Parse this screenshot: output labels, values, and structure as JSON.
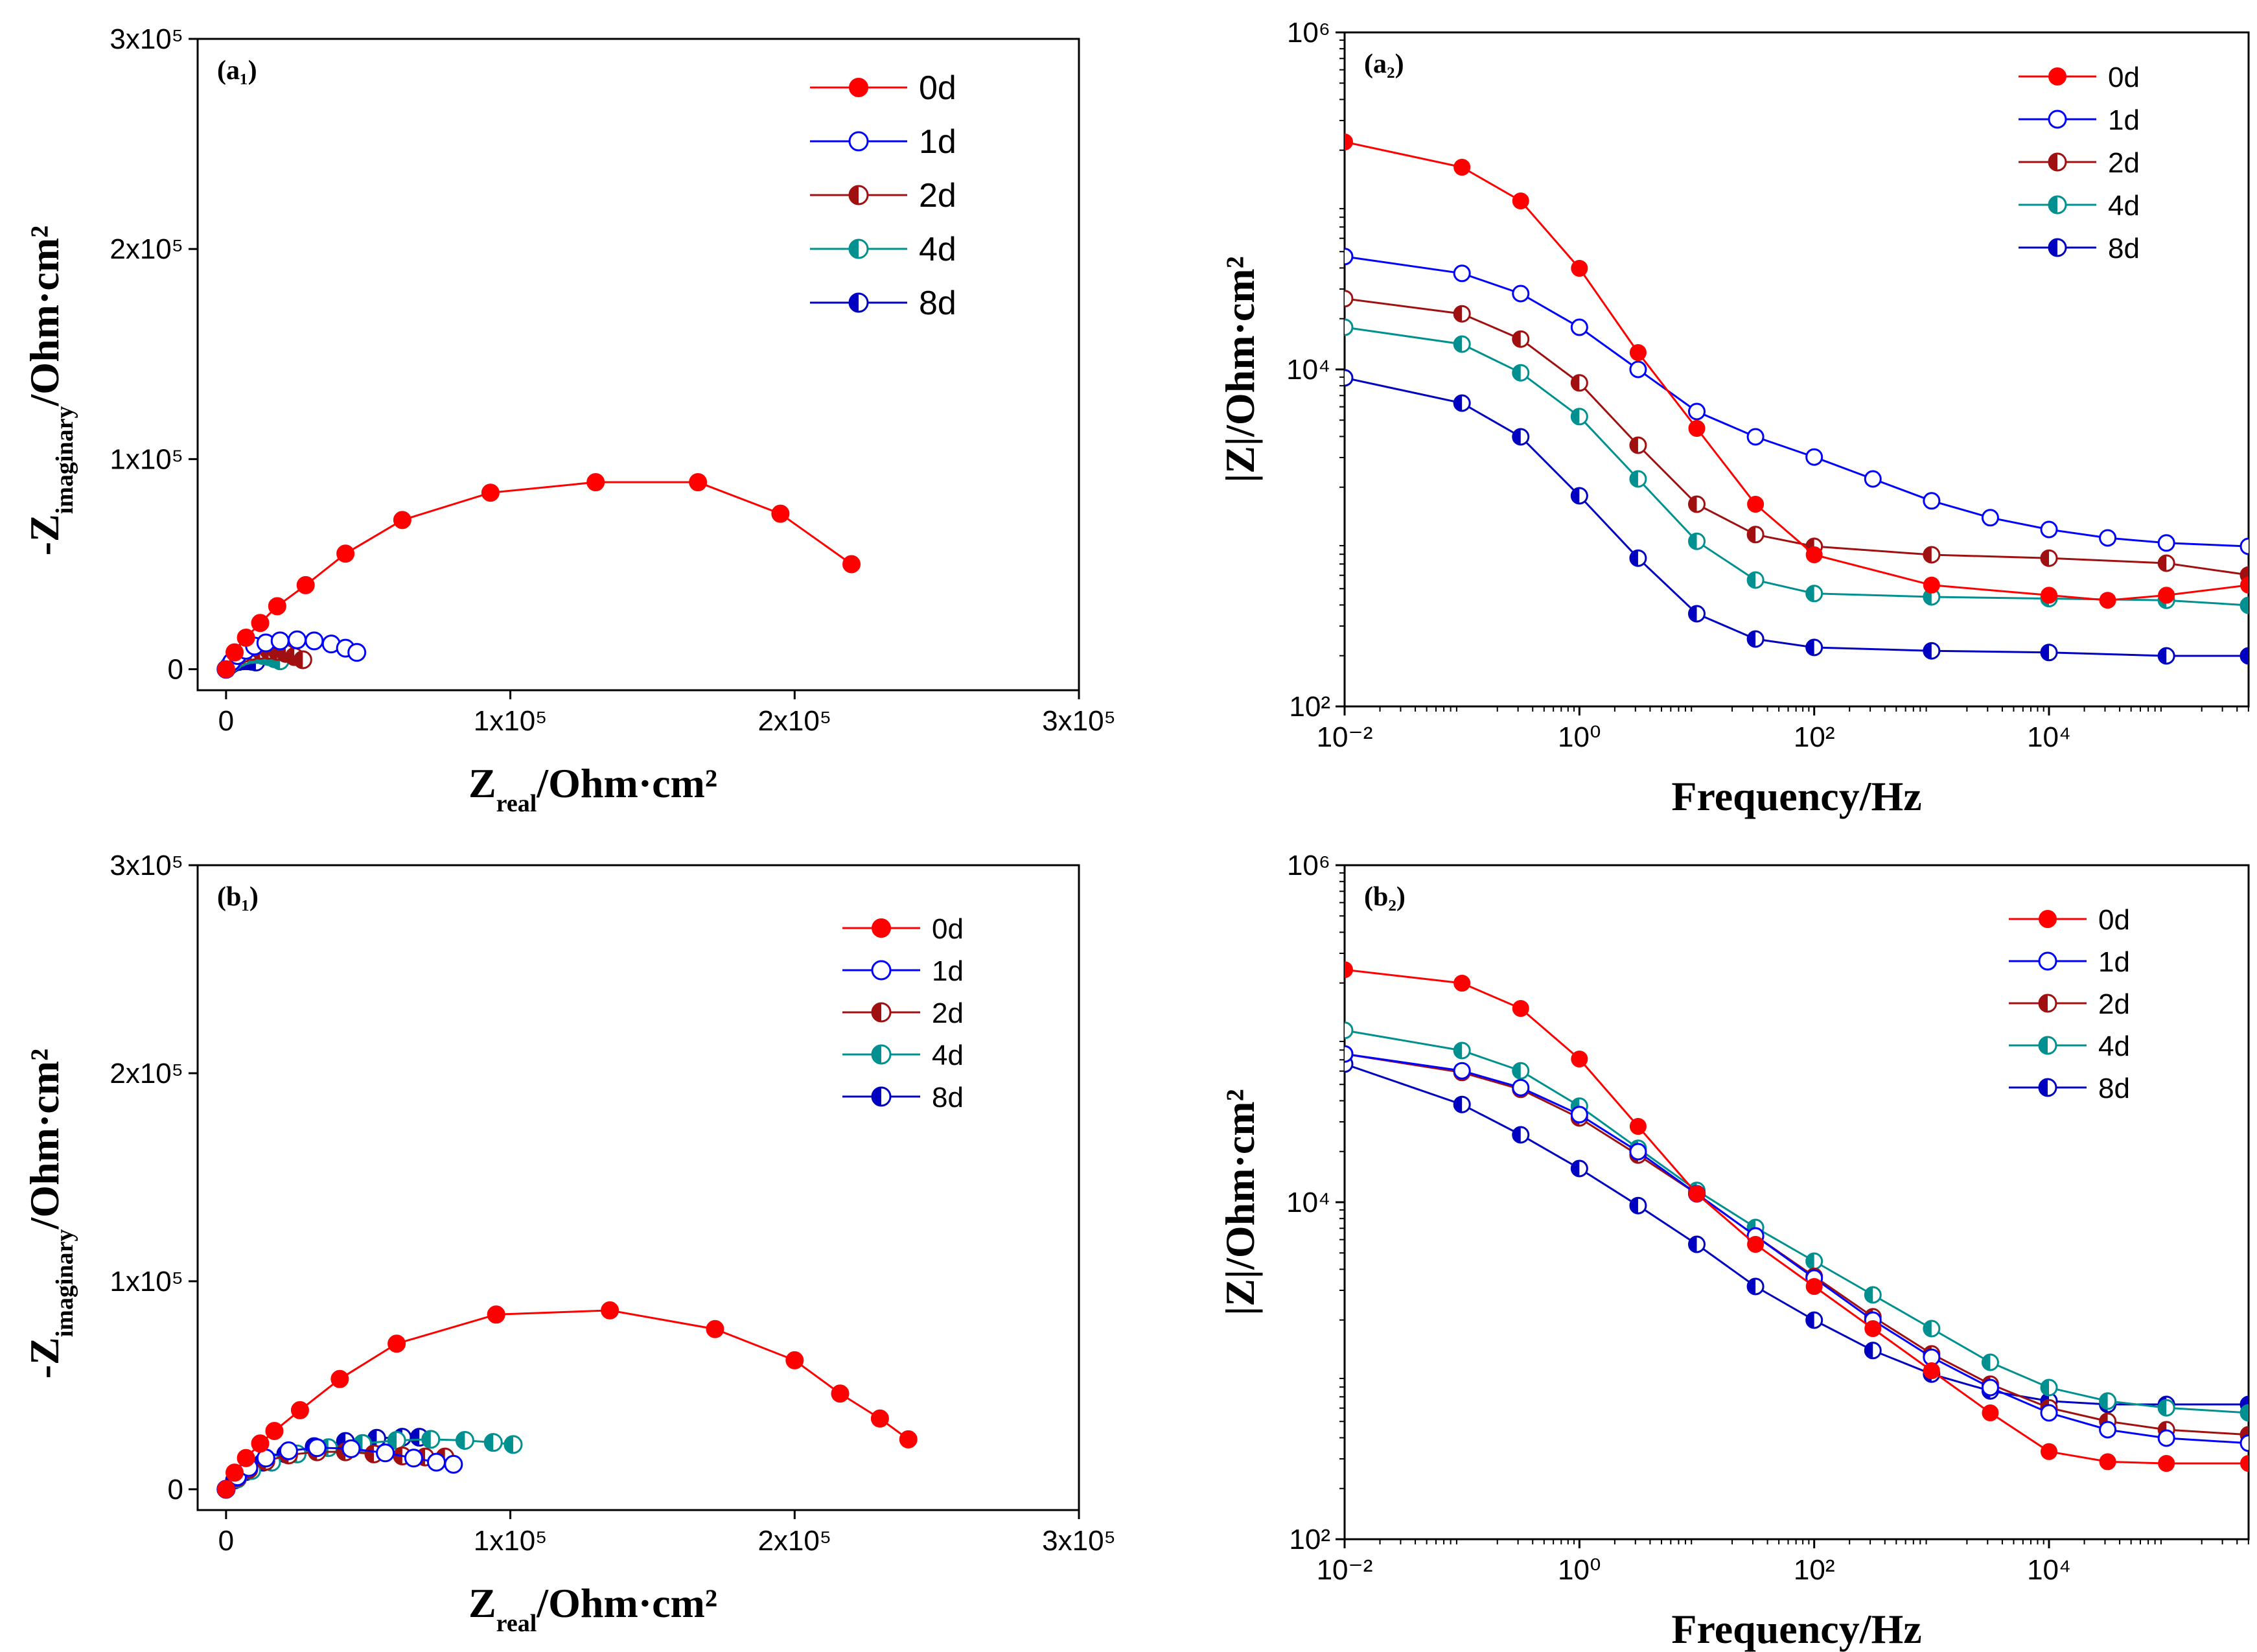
{
  "chart_data": [
    {
      "id": "a1",
      "type": "scatter",
      "panel_label": "(a₁)",
      "xlabel": "Z",
      "xlabel_sub": "real",
      "xlabel_rest": "/Ohm·cm²",
      "ylabel": "-Z",
      "ylabel_sub": "imaginary",
      "ylabel_rest": "/Ohm·cm²",
      "xlim": [
        -10000,
        300000
      ],
      "ylim": [
        -10000,
        300000
      ],
      "xticks": [
        0,
        100000,
        200000,
        300000
      ],
      "xtick_labels": [
        "0",
        "1x10⁵",
        "2x10⁵",
        "3x10⁵"
      ],
      "yticks": [
        0,
        100000,
        200000,
        300000
      ],
      "ytick_labels": [
        "0",
        "1x10⁵",
        "2x10⁵",
        "3x10⁵"
      ],
      "legend_position": "top-right",
      "series": [
        {
          "name": "0d",
          "color": "#ff0000",
          "marker": "filled",
          "x": [
            0,
            3000,
            7000,
            12000,
            18000,
            28000,
            42000,
            62000,
            93000,
            130000,
            166000,
            195000,
            220000
          ],
          "y": [
            0,
            8000,
            15000,
            22000,
            30000,
            40000,
            55000,
            71000,
            84000,
            89000,
            89000,
            74000,
            50000
          ]
        },
        {
          "name": "1d",
          "color": "#0000ff",
          "marker": "open",
          "x": [
            0,
            2000,
            4000,
            7000,
            10000,
            14000,
            19000,
            25000,
            31000,
            37000,
            42000,
            46000
          ],
          "y": [
            0,
            3500,
            6500,
            9000,
            11000,
            12500,
            13500,
            14000,
            13500,
            12000,
            10000,
            8000
          ]
        },
        {
          "name": "2d",
          "color": "#a01010",
          "marker": "half",
          "x": [
            0,
            2000,
            4000,
            6000,
            9000,
            12000,
            15000,
            18000,
            21000,
            24000,
            27000
          ],
          "y": [
            0,
            3500,
            6000,
            7500,
            8500,
            9000,
            9000,
            8500,
            7500,
            6000,
            4500
          ]
        },
        {
          "name": "4d",
          "color": "#009090",
          "marker": "half",
          "x": [
            0,
            1500,
            3000,
            5000,
            7000,
            9000,
            11000,
            13000,
            15000,
            17000,
            19000
          ],
          "y": [
            0,
            2500,
            4000,
            5500,
            6500,
            7000,
            7000,
            6500,
            6000,
            5000,
            4000
          ]
        },
        {
          "name": "8d",
          "color": "#0000c0",
          "marker": "half",
          "x": [
            0,
            1000,
            2000,
            3000,
            4500,
            6000,
            7500,
            9000,
            10500
          ],
          "y": [
            0,
            1500,
            2500,
            3200,
            3700,
            4000,
            4000,
            3800,
            3400
          ]
        }
      ]
    },
    {
      "id": "a2",
      "type": "line",
      "log_x": true,
      "log_y": true,
      "panel_label": "(a₂)",
      "xlabel": "Frequency/Hz",
      "ylabel": "|Z|/Ohm·cm²",
      "xlim_log10": [
        -2,
        5.7
      ],
      "ylim_log10": [
        2,
        6
      ],
      "xticks_log10": [
        -2,
        0,
        2,
        4
      ],
      "xtick_labels": [
        "10⁻²",
        "10⁰",
        "10²",
        "10⁴"
      ],
      "yticks_log10": [
        2,
        4,
        6
      ],
      "ytick_labels": [
        "10²",
        "10⁴",
        "10⁶"
      ],
      "legend_position": "top-right",
      "series": [
        {
          "name": "0d",
          "color": "#ff0000",
          "marker": "filled",
          "lx": [
            -2,
            -1,
            -0.5,
            0,
            0.5,
            1,
            1.5,
            2,
            3,
            4,
            4.5,
            5,
            5.7
          ],
          "ly": [
            5.35,
            5.2,
            5.0,
            4.6,
            4.1,
            3.65,
            3.2,
            2.9,
            2.72,
            2.66,
            2.63,
            2.66,
            2.72
          ]
        },
        {
          "name": "1d",
          "color": "#0000ff",
          "marker": "open",
          "lx": [
            -2,
            -1,
            -0.5,
            0,
            0.5,
            1,
            1.5,
            2,
            2.5,
            3,
            3.5,
            4,
            4.5,
            5,
            5.7
          ],
          "ly": [
            4.67,
            4.57,
            4.45,
            4.25,
            4.0,
            3.75,
            3.6,
            3.48,
            3.35,
            3.22,
            3.12,
            3.05,
            3.0,
            2.97,
            2.95
          ]
        },
        {
          "name": "2d",
          "color": "#a01010",
          "marker": "half",
          "lx": [
            -2,
            -1,
            -0.5,
            0,
            0.5,
            1,
            1.5,
            2,
            3,
            4,
            5,
            5.7
          ],
          "ly": [
            4.42,
            4.33,
            4.18,
            3.92,
            3.55,
            3.2,
            3.02,
            2.95,
            2.9,
            2.88,
            2.85,
            2.78
          ]
        },
        {
          "name": "4d",
          "color": "#009090",
          "marker": "half",
          "lx": [
            -2,
            -1,
            -0.5,
            0,
            0.5,
            1,
            1.5,
            2,
            3,
            4,
            5,
            5.7
          ],
          "ly": [
            4.25,
            4.15,
            3.98,
            3.72,
            3.35,
            2.98,
            2.75,
            2.67,
            2.65,
            2.64,
            2.63,
            2.6
          ]
        },
        {
          "name": "8d",
          "color": "#0000c0",
          "marker": "half",
          "lx": [
            -2,
            -1,
            -0.5,
            0,
            0.5,
            1,
            1.5,
            2,
            3,
            4,
            5,
            5.7
          ],
          "ly": [
            3.95,
            3.8,
            3.6,
            3.25,
            2.88,
            2.55,
            2.4,
            2.35,
            2.33,
            2.32,
            2.3,
            2.3
          ]
        }
      ]
    },
    {
      "id": "b1",
      "type": "scatter",
      "panel_label": "(b₁)",
      "xlabel": "Z",
      "xlabel_sub": "real",
      "xlabel_rest": "/Ohm·cm²",
      "ylabel": "-Z",
      "ylabel_sub": "imaginary",
      "ylabel_rest": "/Ohm·cm²",
      "xlim": [
        -10000,
        300000
      ],
      "ylim": [
        -10000,
        300000
      ],
      "xticks": [
        0,
        100000,
        200000,
        300000
      ],
      "xtick_labels": [
        "0",
        "1x10⁵",
        "2x10⁵",
        "3x10⁵"
      ],
      "yticks": [
        0,
        100000,
        200000,
        300000
      ],
      "ytick_labels": [
        "0",
        "1x10⁵",
        "2x10⁵",
        "3x10⁵"
      ],
      "legend_position": "top-right",
      "series": [
        {
          "name": "0d",
          "color": "#ff0000",
          "marker": "filled",
          "x": [
            0,
            3000,
            7000,
            12000,
            17000,
            26000,
            40000,
            60000,
            95000,
            135000,
            172000,
            200000,
            216000,
            230000,
            240000
          ],
          "y": [
            0,
            8000,
            15000,
            22000,
            28000,
            38000,
            53000,
            70000,
            84000,
            86000,
            77000,
            62000,
            46000,
            34000,
            24000
          ]
        },
        {
          "name": "1d",
          "color": "#0000ff",
          "marker": "open",
          "x": [
            0,
            4000,
            8000,
            14000,
            22000,
            32000,
            44000,
            56000,
            66000,
            74000,
            80000
          ],
          "y": [
            0,
            6000,
            10500,
            15000,
            18500,
            20000,
            19500,
            17500,
            15000,
            13000,
            12000
          ]
        },
        {
          "name": "2d",
          "color": "#a01010",
          "marker": "half",
          "x": [
            0,
            4000,
            8000,
            14000,
            22000,
            32000,
            42000,
            52000,
            62000,
            70000,
            77000
          ],
          "y": [
            0,
            5500,
            9500,
            13500,
            16500,
            18000,
            18000,
            17000,
            16000,
            15500,
            15500
          ]
        },
        {
          "name": "4d",
          "color": "#009090",
          "marker": "half",
          "x": [
            0,
            4000,
            9000,
            16000,
            25000,
            36000,
            48000,
            60000,
            72000,
            84000,
            94000,
            101000
          ],
          "y": [
            0,
            5000,
            9000,
            13000,
            17000,
            20000,
            22000,
            23500,
            24000,
            23500,
            22500,
            21500
          ]
        },
        {
          "name": "8d",
          "color": "#0000c0",
          "marker": "half",
          "x": [
            0,
            3000,
            7000,
            13000,
            21000,
            31000,
            42000,
            53000,
            62000,
            68000
          ],
          "y": [
            0,
            4500,
            8500,
            13000,
            17000,
            20500,
            23000,
            24500,
            25000,
            25000
          ]
        }
      ]
    },
    {
      "id": "b2",
      "type": "line",
      "log_x": true,
      "log_y": true,
      "panel_label": "(b₂)",
      "xlabel": "Frequency/Hz",
      "ylabel": "|Z|/Ohm·cm²",
      "xlim_log10": [
        -2,
        5.7
      ],
      "ylim_log10": [
        2,
        6
      ],
      "xticks_log10": [
        -2,
        0,
        2,
        4
      ],
      "xtick_labels": [
        "10⁻²",
        "10⁰",
        "10²",
        "10⁴"
      ],
      "yticks_log10": [
        2,
        4,
        6
      ],
      "ytick_labels": [
        "10²",
        "10⁴",
        "10⁶"
      ],
      "legend_position": "top-right",
      "series": [
        {
          "name": "0d",
          "color": "#ff0000",
          "marker": "filled",
          "lx": [
            -2,
            -1,
            -0.5,
            0,
            0.5,
            1,
            1.5,
            2,
            2.5,
            3,
            3.5,
            4,
            4.5,
            5,
            5.7
          ],
          "ly": [
            5.38,
            5.3,
            5.15,
            4.85,
            4.45,
            4.05,
            3.75,
            3.5,
            3.25,
            3.0,
            2.75,
            2.52,
            2.46,
            2.45,
            2.45
          ]
        },
        {
          "name": "1d",
          "color": "#0000ff",
          "marker": "open",
          "lx": [
            -2,
            -1,
            -0.5,
            0,
            0.5,
            1,
            1.5,
            2,
            2.5,
            3,
            3.5,
            4,
            4.5,
            5,
            5.7
          ],
          "ly": [
            4.88,
            4.78,
            4.68,
            4.52,
            4.3,
            4.05,
            3.8,
            3.55,
            3.3,
            3.08,
            2.9,
            2.75,
            2.65,
            2.6,
            2.57
          ]
        },
        {
          "name": "2d",
          "color": "#a01010",
          "marker": "half",
          "lx": [
            -2,
            -1,
            -0.5,
            0,
            0.5,
            1,
            1.5,
            2,
            2.5,
            3,
            3.5,
            4,
            4.5,
            5,
            5.7
          ],
          "ly": [
            4.88,
            4.77,
            4.67,
            4.5,
            4.28,
            4.05,
            3.8,
            3.56,
            3.32,
            3.1,
            2.92,
            2.78,
            2.7,
            2.65,
            2.62
          ]
        },
        {
          "name": "4d",
          "color": "#009090",
          "marker": "half",
          "lx": [
            -2,
            -1,
            -0.5,
            0,
            0.5,
            1,
            1.5,
            2,
            2.5,
            3,
            3.5,
            4,
            4.5,
            5,
            5.7
          ],
          "ly": [
            5.02,
            4.9,
            4.78,
            4.57,
            4.32,
            4.07,
            3.85,
            3.65,
            3.45,
            3.25,
            3.05,
            2.9,
            2.82,
            2.78,
            2.75
          ]
        },
        {
          "name": "8d",
          "color": "#0000c0",
          "marker": "half",
          "lx": [
            -2,
            -1,
            -0.5,
            0,
            0.5,
            1,
            1.5,
            2,
            2.5,
            3,
            3.5,
            4,
            4.5,
            5,
            5.7
          ],
          "ly": [
            4.82,
            4.58,
            4.4,
            4.2,
            3.98,
            3.75,
            3.5,
            3.3,
            3.12,
            2.98,
            2.88,
            2.82,
            2.8,
            2.8,
            2.8
          ]
        }
      ]
    }
  ]
}
